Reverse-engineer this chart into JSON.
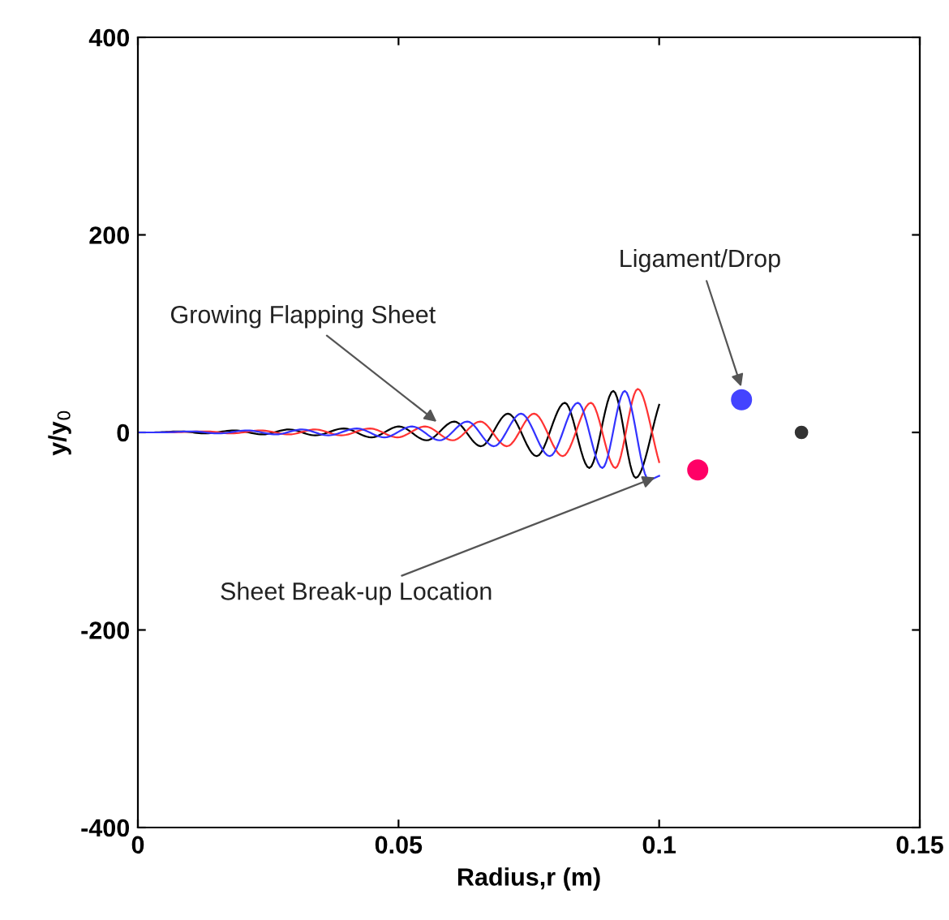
{
  "chart_data": {
    "type": "line",
    "xlabel": "Radius,r (m)",
    "ylabel": "y/y$_{0}$",
    "xlim": [
      0,
      0.15
    ],
    "ylim": [
      -400,
      400
    ],
    "xticks": [
      0,
      0.05,
      0.1,
      0.15
    ],
    "yticks": [
      -400,
      -200,
      0,
      200,
      400
    ],
    "grid": false,
    "legend": false,
    "series": [
      {
        "color": "#000000",
        "x": [
          0,
          0.003,
          0.008,
          0.013,
          0.0185,
          0.024,
          0.029,
          0.034,
          0.0395,
          0.0448,
          0.0501,
          0.0554,
          0.0607,
          0.0658,
          0.071,
          0.0765,
          0.0819,
          0.0866,
          0.0912,
          0.0955,
          0.1
        ],
        "values": [
          0,
          0,
          1,
          -1,
          2,
          -2,
          3,
          -3,
          4,
          -5,
          6,
          -8,
          11,
          -14,
          19,
          -24,
          30,
          -36,
          42,
          -46,
          28
        ]
      },
      {
        "color": "#ff3333",
        "x": [
          0,
          0.005,
          0.013,
          0.018,
          0.0235,
          0.029,
          0.034,
          0.039,
          0.0445,
          0.0498,
          0.0551,
          0.0604,
          0.0657,
          0.0708,
          0.076,
          0.0815,
          0.0869,
          0.0916,
          0.0959,
          0.1
        ],
        "values": [
          0,
          0,
          1,
          -1,
          2,
          -2,
          3,
          -3,
          4,
          -5,
          6,
          -8,
          11,
          -14,
          19,
          -24,
          30,
          -36,
          44,
          -30
        ]
      },
      {
        "color": "#3333ff",
        "x": [
          0,
          0.004,
          0.0105,
          0.0155,
          0.021,
          0.0265,
          0.0315,
          0.0365,
          0.042,
          0.0473,
          0.0526,
          0.0579,
          0.0632,
          0.0683,
          0.0735,
          0.079,
          0.0844,
          0.0891,
          0.0934,
          0.098,
          0.1
        ],
        "values": [
          0,
          0,
          1,
          -1,
          2,
          -2,
          3,
          -3,
          4,
          -5,
          6,
          -8,
          11,
          -14,
          19,
          -24,
          30,
          -36,
          42,
          -48,
          -44
        ]
      },
      {
        "type": "scatter",
        "marker": "circle",
        "color": "#ff0066",
        "x": [
          0.1074
        ],
        "values": [
          -38
        ]
      },
      {
        "type": "scatter",
        "marker": "circle",
        "color": "#4444ff",
        "x": [
          0.1158
        ],
        "values": [
          33
        ]
      },
      {
        "type": "scatter",
        "marker": "circle",
        "color": "#333333",
        "x": [
          0.1273
        ],
        "values": [
          0
        ]
      }
    ],
    "annotations": [
      {
        "text": "Growing Flapping Sheet",
        "x": 0.058,
        "y": 8
      },
      {
        "text": "Sheet Break-up Location",
        "x": 0.1,
        "y": -44
      },
      {
        "text": "Ligament/Drop",
        "x": 0.116,
        "y": 42
      }
    ]
  }
}
